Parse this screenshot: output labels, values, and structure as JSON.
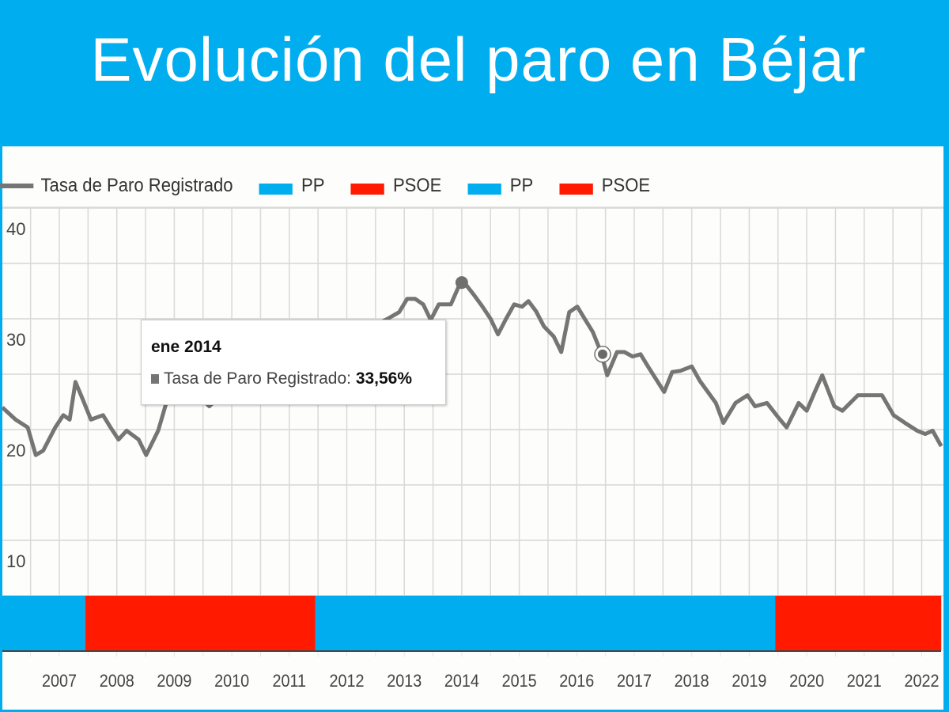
{
  "header": {
    "title": "Evolución del paro en Béjar"
  },
  "colors": {
    "header_bg": "#00aef0",
    "line": "#757575",
    "pp": "#00aef0",
    "psoe": "#ff1a00"
  },
  "tooltip": {
    "date": "ene 2014",
    "series": "Tasa de Paro Registrado:",
    "value": "33,56%"
  },
  "chart_data": {
    "type": "line",
    "title": "",
    "xlabel": "",
    "ylabel": "",
    "xlim": [
      2006.0,
      2022.34
    ],
    "ylim": [
      0,
      40
    ],
    "yticks": [
      10,
      20,
      30,
      40
    ],
    "xticks": [
      "2007",
      "2008",
      "2009",
      "2010",
      "2011",
      "2012",
      "2013",
      "2014",
      "2015",
      "2016",
      "2017",
      "2018",
      "2019",
      "2020",
      "2021",
      "2022"
    ],
    "grid": true,
    "legend": [
      {
        "label": "Tasa de Paro Registrado",
        "type": "line",
        "color": "#757575"
      },
      {
        "label": "PP",
        "type": "box",
        "color": "#00aef0"
      },
      {
        "label": "PSOE",
        "type": "box",
        "color": "#ff1a00"
      },
      {
        "label": "PP",
        "type": "box",
        "color": "#00aef0"
      },
      {
        "label": "PSOE",
        "type": "box",
        "color": "#ff1a00"
      }
    ],
    "legend_position": "top-left",
    "series": [
      {
        "name": "Tasa de Paro Registrado",
        "points": [
          [
            2006.01,
            22.0
          ],
          [
            2006.24,
            20.9
          ],
          [
            2006.45,
            20.2
          ],
          [
            2006.59,
            17.7
          ],
          [
            2006.72,
            18.1
          ],
          [
            2006.93,
            20.2
          ],
          [
            2007.07,
            21.3
          ],
          [
            2007.18,
            20.9
          ],
          [
            2007.28,
            24.3
          ],
          [
            2007.41,
            22.7
          ],
          [
            2007.55,
            20.9
          ],
          [
            2007.76,
            21.3
          ],
          [
            2007.89,
            20.2
          ],
          [
            2008.03,
            19.1
          ],
          [
            2008.17,
            19.9
          ],
          [
            2008.38,
            19.1
          ],
          [
            2008.51,
            17.7
          ],
          [
            2008.72,
            19.9
          ],
          [
            2008.86,
            22.4
          ],
          [
            2009.13,
            24.5
          ],
          [
            2009.61,
            22.1
          ],
          [
            2010.1,
            24.5
          ],
          [
            2010.78,
            26.0
          ],
          [
            2011.47,
            27.5
          ],
          [
            2012.16,
            28.5
          ],
          [
            2012.71,
            30.0
          ],
          [
            2012.91,
            30.6
          ],
          [
            2013.05,
            31.8
          ],
          [
            2013.19,
            31.8
          ],
          [
            2013.33,
            31.3
          ],
          [
            2013.46,
            29.9
          ],
          [
            2013.6,
            31.3
          ],
          [
            2013.81,
            31.3
          ],
          [
            2014.0,
            33.56
          ],
          [
            2014.22,
            32.1
          ],
          [
            2014.36,
            31.1
          ],
          [
            2014.5,
            30.0
          ],
          [
            2014.63,
            28.6
          ],
          [
            2014.77,
            30.0
          ],
          [
            2014.91,
            31.3
          ],
          [
            2015.05,
            31.1
          ],
          [
            2015.16,
            31.6
          ],
          [
            2015.29,
            30.7
          ],
          [
            2015.43,
            29.3
          ],
          [
            2015.6,
            28.4
          ],
          [
            2015.73,
            27.0
          ],
          [
            2015.87,
            30.6
          ],
          [
            2016.01,
            31.1
          ],
          [
            2016.15,
            29.9
          ],
          [
            2016.28,
            28.8
          ],
          [
            2016.42,
            27.0
          ],
          [
            2016.53,
            24.9
          ],
          [
            2016.7,
            27.0
          ],
          [
            2016.83,
            27.0
          ],
          [
            2016.97,
            26.6
          ],
          [
            2017.11,
            26.8
          ],
          [
            2017.25,
            25.6
          ],
          [
            2017.52,
            23.4
          ],
          [
            2017.66,
            25.2
          ],
          [
            2017.8,
            25.3
          ],
          [
            2018.0,
            25.7
          ],
          [
            2018.14,
            24.4
          ],
          [
            2018.42,
            22.4
          ],
          [
            2018.55,
            20.6
          ],
          [
            2018.76,
            22.4
          ],
          [
            2018.97,
            23.1
          ],
          [
            2019.1,
            22.1
          ],
          [
            2019.31,
            22.4
          ],
          [
            2019.52,
            21.0
          ],
          [
            2019.65,
            20.2
          ],
          [
            2019.86,
            22.4
          ],
          [
            2020.0,
            21.7
          ],
          [
            2020.14,
            23.4
          ],
          [
            2020.27,
            24.9
          ],
          [
            2020.48,
            22.1
          ],
          [
            2020.62,
            21.7
          ],
          [
            2020.89,
            23.1
          ],
          [
            2021.03,
            23.1
          ],
          [
            2021.31,
            23.1
          ],
          [
            2021.51,
            21.3
          ],
          [
            2021.71,
            20.6
          ],
          [
            2021.92,
            19.9
          ],
          [
            2022.06,
            19.6
          ],
          [
            2022.19,
            19.9
          ],
          [
            2022.34,
            18.5
          ]
        ]
      }
    ],
    "highlighted_point": [
      2014.0,
      33.56
    ],
    "hover_point": [
      2016.45,
      26.8
    ],
    "government_bands": [
      {
        "party": "PP",
        "from": 2006.0,
        "to": 2007.45,
        "color": "#00aef0"
      },
      {
        "party": "PSOE",
        "from": 2007.45,
        "to": 2011.45,
        "color": "#ff1a00"
      },
      {
        "party": "PP",
        "from": 2011.45,
        "to": 2019.45,
        "color": "#00aef0"
      },
      {
        "party": "PSOE",
        "from": 2019.45,
        "to": 2022.34,
        "color": "#ff1a00"
      }
    ]
  }
}
